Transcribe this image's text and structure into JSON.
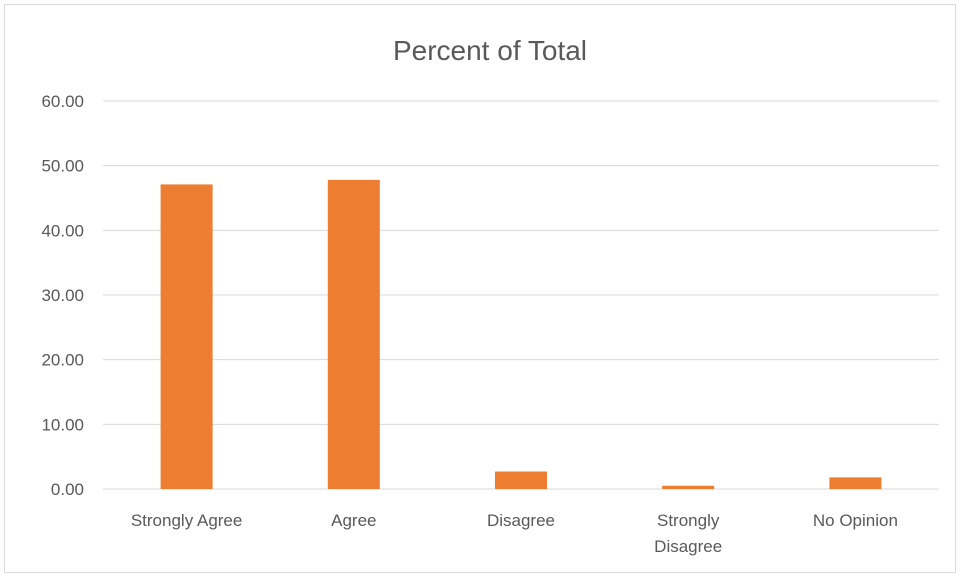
{
  "chart_data": {
    "type": "bar",
    "title": "Percent of Total",
    "xlabel": "",
    "ylabel": "",
    "categories": [
      "Strongly Agree",
      "Agree",
      "Disagree",
      "Strongly Disagree",
      "No Opinion"
    ],
    "category_lines": [
      [
        "Strongly Agree"
      ],
      [
        "Agree"
      ],
      [
        "Disagree"
      ],
      [
        "Strongly",
        "Disagree"
      ],
      [
        "No Opinion"
      ]
    ],
    "values": [
      47.1,
      47.8,
      2.7,
      0.5,
      1.8
    ],
    "ylim": [
      0,
      60
    ],
    "yticks": [
      "0.00",
      "10.00",
      "20.00",
      "30.00",
      "40.00",
      "50.00",
      "60.00"
    ],
    "grid": true,
    "legend": "none",
    "bar_color": "#ed7d31",
    "grid_color": "#d9d9d9"
  }
}
